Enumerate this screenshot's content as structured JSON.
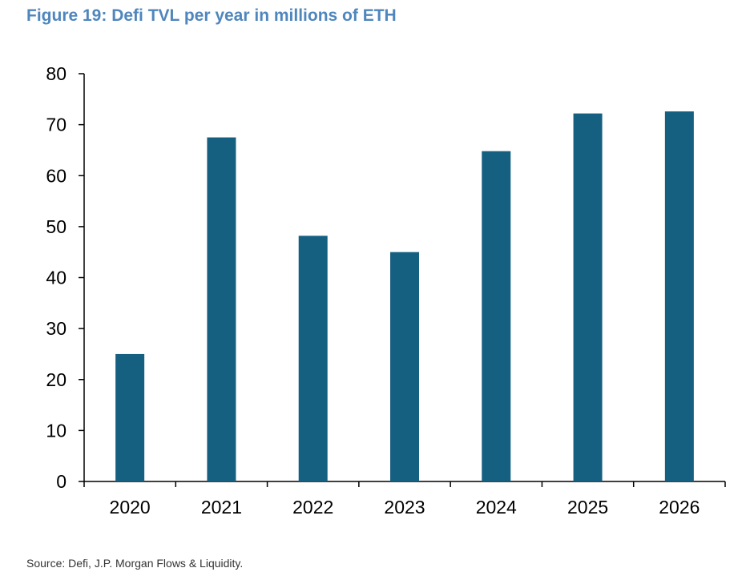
{
  "figure": {
    "title": "Figure 19: Defi TVL per year in millions of ETH",
    "source": "Source: Defi, J.P. Morgan Flows & Liquidity."
  },
  "colors": {
    "title": "#4f86bd",
    "bar": "#155f81",
    "axis": "#000000"
  },
  "chart_data": {
    "type": "bar",
    "categories": [
      "2020",
      "2021",
      "2022",
      "2023",
      "2024",
      "2025",
      "2026"
    ],
    "values": [
      25,
      67.5,
      48.2,
      45,
      64.8,
      72.2,
      72.6
    ],
    "title": "Figure 19: Defi TVL per year in millions of ETH",
    "xlabel": "",
    "ylabel": "",
    "ylim": [
      0,
      80
    ],
    "yticks": [
      0,
      10,
      20,
      30,
      40,
      50,
      60,
      70,
      80
    ],
    "grid": false,
    "legend": "none"
  }
}
